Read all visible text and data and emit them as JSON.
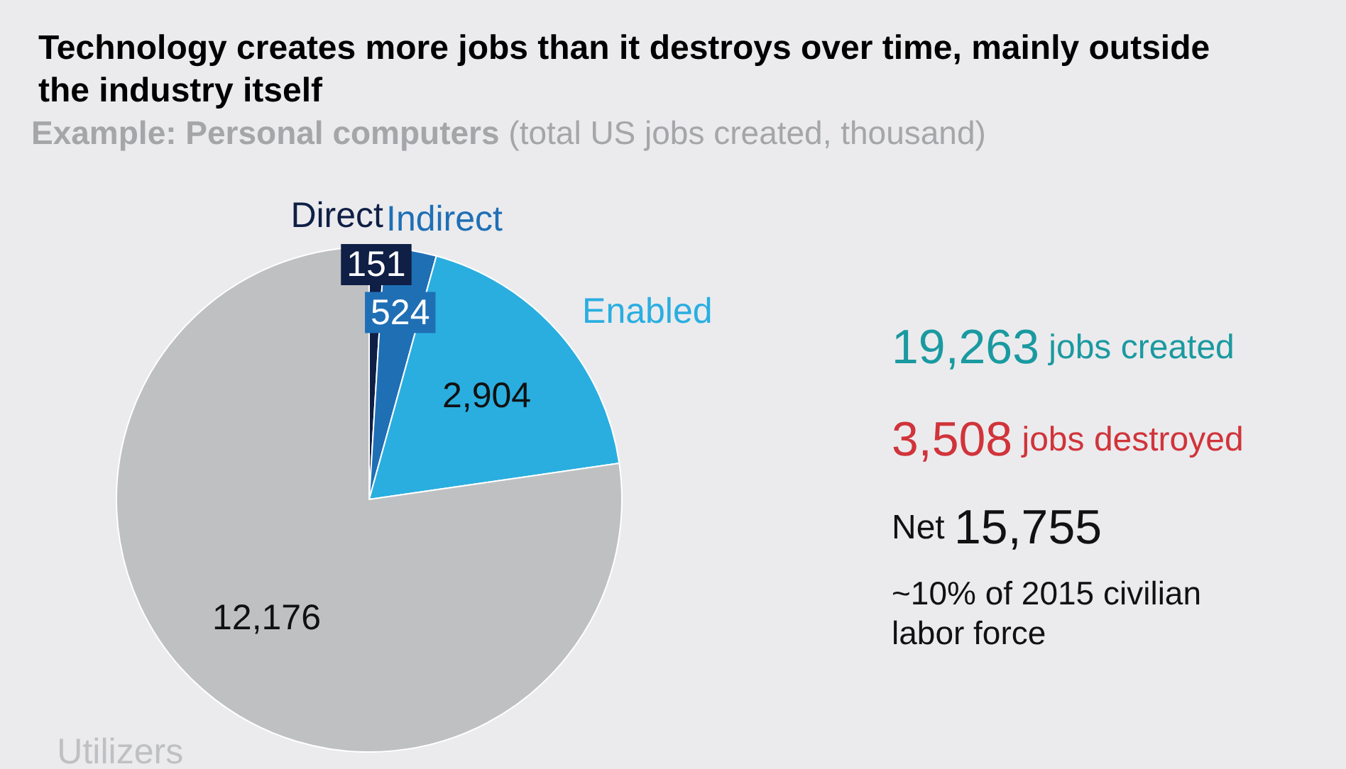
{
  "chart_data": {
    "type": "pie",
    "title": "Technology creates more jobs than it destroys over time, mainly outside the industry itself",
    "subtitle": "Example: Personal computers (total US jobs created, thousand)",
    "categories": [
      "Direct",
      "Indirect",
      "Enabled",
      "Utilizers"
    ],
    "values": [
      151,
      524,
      2904,
      12176
    ],
    "colors": [
      "#0f1f45",
      "#1f6fb5",
      "#2aaee0",
      "#bfc0c2"
    ],
    "value_labels": [
      "151",
      "524",
      "2,904",
      "12,176"
    ],
    "annotations": [
      "19,263 jobs created",
      "3,508 jobs destroyed",
      "Net 15,755",
      "~10% of 2015 civilian labor force"
    ]
  }
}
